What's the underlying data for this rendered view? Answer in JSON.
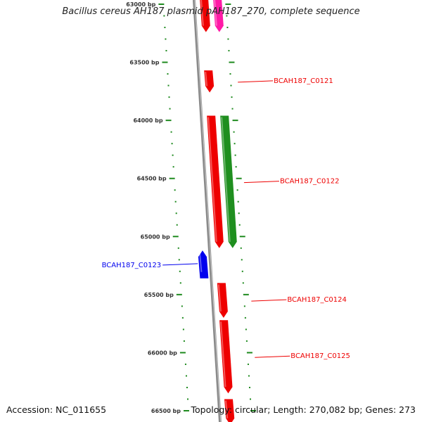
{
  "title": "Bacillus cereus AH187 plasmid pAH187_270, complete sequence",
  "footer": {
    "accession": "Accession: NC_011655",
    "summary": "Topology: circular; Length: 270,082 bp; Genes: 273"
  },
  "colors": {
    "backbone": "#8a8a8a",
    "tick": "#1e8a1e",
    "gene_red": "#ee0000",
    "gene_pink": "#ff1aa6",
    "gene_green": "#1f8f1f",
    "gene_blue": "#0000ee"
  },
  "scale": {
    "ticks": [
      {
        "bp": 63000,
        "label": "63000 bp"
      },
      {
        "bp": 63500,
        "label": "63500 bp"
      },
      {
        "bp": 64000,
        "label": "64000 bp"
      },
      {
        "bp": 64500,
        "label": "64500 bp"
      },
      {
        "bp": 65000,
        "label": "65000 bp"
      },
      {
        "bp": 65500,
        "label": "65500 bp"
      },
      {
        "bp": 66000,
        "label": "66000 bp"
      },
      {
        "bp": 66500,
        "label": "66500 bp"
      }
    ]
  },
  "genes": [
    {
      "lane": "fwd1",
      "start": 62850,
      "end": 63240,
      "strand": "-",
      "color": "gene_red"
    },
    {
      "lane": "fwd2",
      "start": 62850,
      "end": 63240,
      "strand": "-",
      "color": "gene_pink"
    },
    {
      "lane": "fwd1",
      "start": 63570,
      "end": 63760,
      "strand": "-",
      "color": "gene_red",
      "label": "BCAH187_C0121"
    },
    {
      "lane": "fwd1",
      "start": 63960,
      "end": 65100,
      "strand": "-",
      "color": "gene_red",
      "label": "BCAH187_C0122"
    },
    {
      "lane": "fwd2",
      "start": 63960,
      "end": 65100,
      "strand": "-",
      "color": "gene_green"
    },
    {
      "lane": "rev1",
      "start": 65120,
      "end": 65360,
      "strand": "+",
      "color": "gene_blue",
      "label": "BCAH187_C0123"
    },
    {
      "lane": "fwd1",
      "start": 65400,
      "end": 65700,
      "strand": "-",
      "color": "gene_red",
      "label": "BCAH187_C0124"
    },
    {
      "lane": "fwd1",
      "start": 65720,
      "end": 66350,
      "strand": "-",
      "color": "gene_red",
      "label": "BCAH187_C0125"
    },
    {
      "lane": "fwd1",
      "start": 66400,
      "end": 66620,
      "strand": "-",
      "color": "gene_red"
    }
  ]
}
